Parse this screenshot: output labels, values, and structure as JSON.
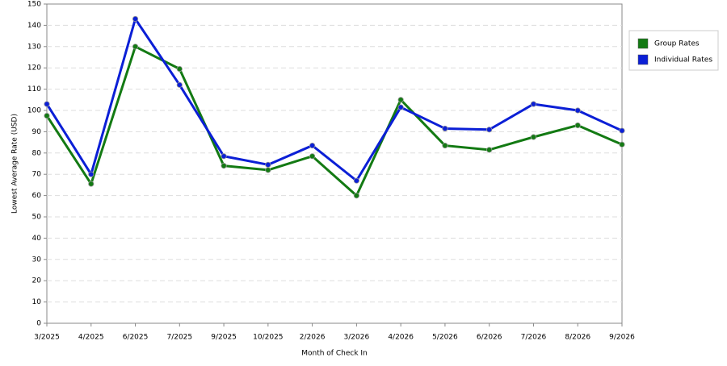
{
  "chart_data": {
    "type": "line",
    "x_label": "Month of Check In",
    "y_label": "Lowest Average Rate (USD)",
    "categories": [
      "3/2025",
      "4/2025",
      "6/2025",
      "7/2025",
      "9/2025",
      "10/2025",
      "2/2026",
      "3/2026",
      "4/2026",
      "5/2026",
      "6/2026",
      "7/2026",
      "8/2026",
      "9/2026"
    ],
    "series": [
      {
        "name": "Group Rates",
        "color": "#137a13",
        "values": [
          97.5,
          65.5,
          130,
          119.5,
          74,
          72,
          78.5,
          60,
          105,
          83.5,
          81.5,
          87.5,
          93,
          84
        ]
      },
      {
        "name": "Individual Rates",
        "color": "#0b1fd6",
        "values": [
          103,
          70,
          143,
          112,
          78.5,
          74.5,
          83.5,
          67,
          101.5,
          91.5,
          91,
          103,
          100,
          90.5
        ]
      }
    ],
    "ylim": [
      0,
      150
    ],
    "yticks": [
      0,
      10,
      20,
      30,
      40,
      50,
      60,
      70,
      80,
      90,
      100,
      110,
      120,
      130,
      140,
      150
    ],
    "grid": true,
    "legend": "right"
  }
}
